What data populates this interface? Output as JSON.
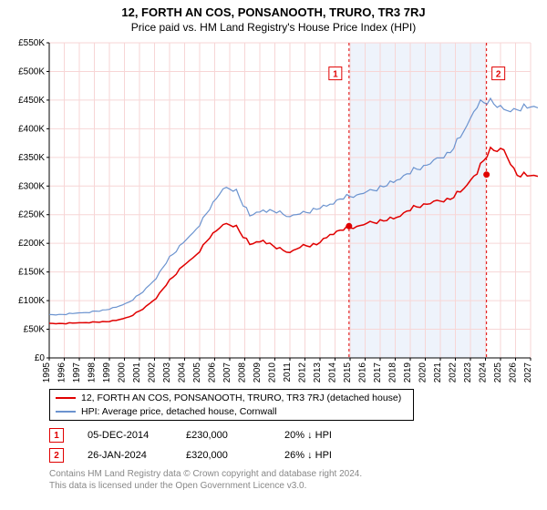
{
  "title": "12, FORTH AN COS, PONSANOOTH, TRURO, TR3 7RJ",
  "subtitle": "Price paid vs. HM Land Registry's House Price Index (HPI)",
  "chart": {
    "type": "line",
    "x_start_year": 1995,
    "x_end_year": 2027,
    "y_min": 0,
    "y_max": 550000,
    "y_tick_step": 50000,
    "y_tick_labels": [
      "£0",
      "£50K",
      "£100K",
      "£150K",
      "£200K",
      "£250K",
      "£300K",
      "£350K",
      "£400K",
      "£450K",
      "£500K",
      "£550K"
    ],
    "x_tick_labels": [
      "1995",
      "1996",
      "1997",
      "1998",
      "1999",
      "2000",
      "2001",
      "2002",
      "2003",
      "2004",
      "2005",
      "2006",
      "2007",
      "2008",
      "2009",
      "2010",
      "2011",
      "2012",
      "2013",
      "2014",
      "2015",
      "2016",
      "2017",
      "2018",
      "2019",
      "2020",
      "2021",
      "2022",
      "2023",
      "2024",
      "2025",
      "2026",
      "2027"
    ],
    "grid_color": "#f7d6d6",
    "axis_color": "#000000",
    "plot_bg": "#ffffff",
    "shade_color": "#eef3fb",
    "shade_start_year": 2014.93,
    "shade_end_year": 2024.07,
    "series": [
      {
        "name": "property",
        "color": "#e00000",
        "width": 1.5,
        "y": [
          60,
          60,
          61,
          62,
          63,
          65,
          72,
          85,
          105,
          135,
          160,
          180,
          210,
          235,
          228,
          198,
          205,
          192,
          185,
          195,
          198,
          215,
          225,
          230,
          235,
          240,
          245,
          260,
          268,
          272,
          278,
          295,
          325,
          365,
          360,
          320,
          318
        ]
      },
      {
        "name": "hpi",
        "color": "#6b93cf",
        "width": 1.2,
        "y": [
          75,
          76,
          78,
          80,
          83,
          88,
          98,
          115,
          140,
          175,
          200,
          225,
          260,
          298,
          290,
          248,
          258,
          255,
          248,
          252,
          260,
          268,
          280,
          285,
          290,
          300,
          310,
          325,
          335,
          345,
          360,
          395,
          442,
          450,
          430,
          435,
          438
        ]
      }
    ],
    "markers": [
      {
        "n": "1",
        "year": 2014.93,
        "price": 230000,
        "label_y": 495000
      },
      {
        "n": "2",
        "year": 2024.07,
        "price": 320000,
        "label_y": 495000
      }
    ]
  },
  "legend": {
    "items": [
      {
        "color": "#e00000",
        "label": "12, FORTH AN COS, PONSANOOTH, TRURO, TR3 7RJ (detached house)"
      },
      {
        "color": "#6b93cf",
        "label": "HPI: Average price, detached house, Cornwall"
      }
    ]
  },
  "sales": [
    {
      "n": "1",
      "date": "05-DEC-2014",
      "price": "£230,000",
      "pct": "20%",
      "dir": "↓",
      "rel": "HPI"
    },
    {
      "n": "2",
      "date": "26-JAN-2024",
      "price": "£320,000",
      "pct": "26%",
      "dir": "↓",
      "rel": "HPI"
    }
  ],
  "footer": {
    "l1": "Contains HM Land Registry data © Crown copyright and database right 2024.",
    "l2": "This data is licensed under the Open Government Licence v3.0."
  }
}
